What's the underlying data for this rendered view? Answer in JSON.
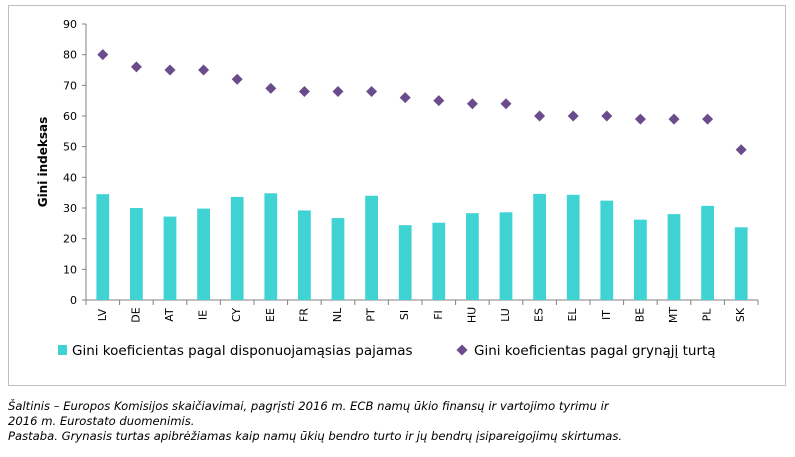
{
  "chart_data": {
    "type": "bar",
    "categories": [
      "LV",
      "DE",
      "AT",
      "IE",
      "CY",
      "EE",
      "FR",
      "NL",
      "PT",
      "SI",
      "FI",
      "HU",
      "LU",
      "ES",
      "EL",
      "IT",
      "BE",
      "MT",
      "PL",
      "SK"
    ],
    "series": [
      {
        "name": "Gini koeficientas pagal disponuojamąsias pajamas",
        "kind": "bar",
        "color": "#40d3d3",
        "values": [
          34.5,
          30.0,
          27.2,
          29.8,
          33.6,
          34.8,
          29.2,
          26.7,
          34.0,
          24.4,
          25.2,
          28.3,
          28.6,
          34.6,
          34.3,
          32.4,
          26.2,
          28.0,
          30.7,
          23.7
        ]
      },
      {
        "name": "Gini koeficientas pagal grynąjį turtą",
        "kind": "marker",
        "marker": "diamond",
        "color": "#6a4c8c",
        "values": [
          80,
          76,
          75,
          75,
          72,
          69,
          68,
          68,
          68,
          66,
          65,
          64,
          64,
          60,
          60,
          60,
          59,
          59,
          59,
          49
        ]
      }
    ],
    "ylabel": "Gini indeksas",
    "ylim": [
      0,
      90
    ],
    "yticks": [
      0,
      10,
      20,
      30,
      40,
      50,
      60,
      70,
      80,
      90
    ],
    "grid": false,
    "legend_position": "bottom"
  },
  "notes": {
    "source_line1": "Šaltinis – Europos Komisijos skaičiavimai, pagrįsti 2016 m. ECB namų ūkio finansų ir vartojimo tyrimu ir",
    "source_line2": "2016 m. Eurostato duomenimis.",
    "remark": "Pastaba. Grynasis turtas apibrėžiamas kaip namų ūkių bendro turto ir jų bendrų įsipareigojimų skirtumas."
  }
}
